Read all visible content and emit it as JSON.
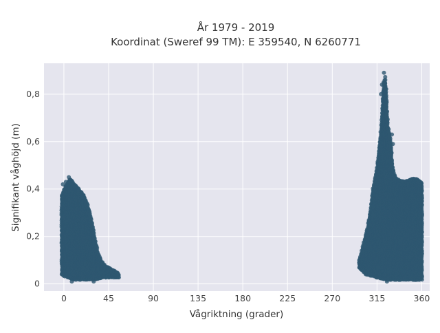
{
  "chart_data": {
    "type": "scatter",
    "title_line1": "År 1979 - 2019",
    "title_line2": "Koordinat (Sweref 99 TM): E 359540, N 6260771",
    "xlabel": "Vågriktning (grader)",
    "ylabel": "Signifikant våghöjd (m)",
    "xlim": [
      -20,
      368
    ],
    "ylim": [
      -0.03,
      0.93
    ],
    "xticks": [
      0,
      45,
      90,
      135,
      180,
      225,
      270,
      315,
      360
    ],
    "xtick_labels": [
      "0",
      "45",
      "90",
      "135",
      "180",
      "225",
      "270",
      "315",
      "360"
    ],
    "yticks": [
      0,
      0.2,
      0.4,
      0.6,
      0.8
    ],
    "ytick_labels": [
      "0",
      "0,2",
      "0,4",
      "0,6",
      "0,8"
    ],
    "grid": true,
    "marker_color": "#2e5870",
    "background_color": "#e5e5ee",
    "envelope": [
      [
        -2,
        0.37
      ],
      [
        0,
        0.39
      ],
      [
        3,
        0.42
      ],
      [
        6,
        0.44
      ],
      [
        10,
        0.42
      ],
      [
        15,
        0.4
      ],
      [
        20,
        0.37
      ],
      [
        24,
        0.33
      ],
      [
        28,
        0.26
      ],
      [
        31,
        0.19
      ],
      [
        34,
        0.13
      ],
      [
        38,
        0.09
      ],
      [
        43,
        0.07
      ],
      [
        48,
        0.06
      ],
      [
        52,
        0.05
      ],
      [
        55,
        0.04
      ],
      [
        297,
        0.09
      ],
      [
        300,
        0.14
      ],
      [
        303,
        0.19
      ],
      [
        306,
        0.24
      ],
      [
        309,
        0.32
      ],
      [
        311,
        0.4
      ],
      [
        313,
        0.44
      ],
      [
        315,
        0.49
      ],
      [
        317,
        0.56
      ],
      [
        319,
        0.64
      ],
      [
        320,
        0.7
      ],
      [
        321,
        0.78
      ],
      [
        322,
        0.85
      ],
      [
        323,
        0.87
      ],
      [
        324,
        0.82
      ],
      [
        325,
        0.73
      ],
      [
        326,
        0.66
      ],
      [
        328,
        0.62
      ],
      [
        329,
        0.58
      ],
      [
        330,
        0.52
      ],
      [
        332,
        0.46
      ],
      [
        335,
        0.44
      ],
      [
        340,
        0.43
      ],
      [
        345,
        0.43
      ],
      [
        350,
        0.44
      ],
      [
        355,
        0.44
      ],
      [
        358,
        0.43
      ],
      [
        360,
        0.42
      ]
    ],
    "floor": [
      [
        -2,
        0.04
      ],
      [
        10,
        0.02
      ],
      [
        20,
        0.02
      ],
      [
        30,
        0.02
      ],
      [
        40,
        0.03
      ],
      [
        50,
        0.03
      ],
      [
        55,
        0.03
      ],
      [
        297,
        0.07
      ],
      [
        305,
        0.04
      ],
      [
        315,
        0.03
      ],
      [
        325,
        0.02
      ],
      [
        335,
        0.02
      ],
      [
        345,
        0.02
      ],
      [
        355,
        0.02
      ],
      [
        360,
        0.02
      ]
    ],
    "outliers": [
      [
        5,
        0.45
      ],
      [
        2,
        0.43
      ],
      [
        -1,
        0.42
      ],
      [
        30,
        0.01
      ],
      [
        8,
        0.01
      ],
      [
        322,
        0.89
      ],
      [
        320,
        0.84
      ],
      [
        319,
        0.8
      ],
      [
        331,
        0.59
      ],
      [
        330,
        0.63
      ],
      [
        303,
        0.16
      ],
      [
        305,
        0.2
      ],
      [
        308,
        0.25
      ],
      [
        311,
        0.29
      ],
      [
        325,
        0.01
      ],
      [
        316,
        0.07
      ]
    ]
  }
}
